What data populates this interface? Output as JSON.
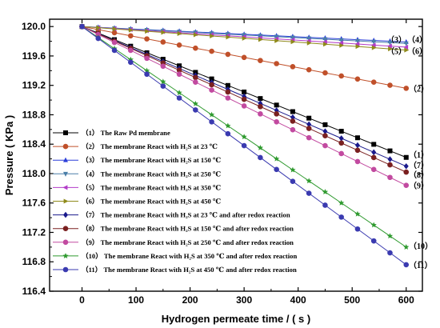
{
  "chart_data": {
    "type": "line",
    "xlabel": "Hydrogen permeate time / ( s )",
    "ylabel": "Pressure ( KPa )",
    "xlim": [
      -60,
      630
    ],
    "ylim": [
      116.4,
      120.1
    ],
    "xticks": [
      0,
      100,
      200,
      300,
      400,
      500,
      600
    ],
    "yticks": [
      "116.4",
      "116.8",
      "117.2",
      "117.6",
      "118.0",
      "118.4",
      "118.8",
      "119.2",
      "119.6",
      "120.0"
    ],
    "series": [
      {
        "name": "（1） The Raw Pd membrane",
        "color": "#000000",
        "marker": "square",
        "end": 118.22,
        "label": "（1）",
        "label_y": 118.26
      },
      {
        "name": "（2） The membrane React with H₂S at 23 ℃",
        "color": "#c0502a",
        "marker": "circle",
        "end": 119.16,
        "label": "（2）",
        "label_y": 119.16
      },
      {
        "name": "（3） The membrane React with H₂S at 150 ℃",
        "color": "#2b3fd9",
        "marker": "triangle-up",
        "end": 119.79,
        "label": "（3）",
        "label_y": 119.83
      },
      {
        "name": "（4） The membrane React with H₂S at 250 ℃",
        "color": "#4a7fa8",
        "marker": "triangle-down",
        "end": 119.77,
        "label": "（4）",
        "label_y": 119.83
      },
      {
        "name": "（5） The membrane React with H₂S at 350 ℃",
        "color": "#b23cc8",
        "marker": "triangle-left",
        "end": 119.72,
        "label": "（5）",
        "label_y": 119.67
      },
      {
        "name": "（6） The membrane React with H₂S at 450 ℃",
        "color": "#8f8a1a",
        "marker": "triangle-right",
        "end": 119.68,
        "label": "（6）",
        "label_y": 119.67
      },
      {
        "name": "（7） The membrane React with H₂S at 23 ℃ and after redox reaction",
        "color": "#1a1a8c",
        "marker": "diamond",
        "end": 118.1,
        "label": "（7）",
        "label_y": 118.12
      },
      {
        "name": "（8） The membrane React with H₂S at 150 ℃ and after redox reaction",
        "color": "#7a2020",
        "marker": "circle",
        "end": 118.02,
        "label": "（8）",
        "label_y": 117.99
      },
      {
        "name": "（9） The membrane React with H₂S at 250 ℃ and after redox reaction",
        "color": "#c24aa0",
        "marker": "circle",
        "end": 117.84,
        "label": "（9）",
        "label_y": 117.84
      },
      {
        "name": "（10） The membrane React with H₂S at 350 ℃ and after redox reaction",
        "color": "#2f9a2f",
        "marker": "star",
        "end": 117.0,
        "label": "（10）",
        "label_y": 117.02
      },
      {
        "name": "（11） The membrane React with H₂S at 450 ℃ and after redox reaction",
        "color": "#3a3ab0",
        "marker": "circle-filled",
        "end": 116.76,
        "label": "（11）",
        "label_y": 116.76
      }
    ],
    "x": [
      0,
      30,
      60,
      90,
      120,
      150,
      180,
      210,
      240,
      270,
      300,
      330,
      360,
      390,
      420,
      450,
      480,
      510,
      540,
      570,
      600
    ],
    "start": 120.0,
    "grid": false,
    "legend_position": "bottom-left"
  }
}
